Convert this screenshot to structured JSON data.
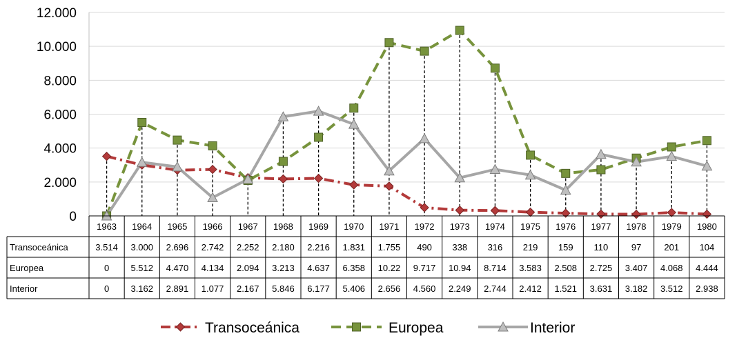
{
  "chart_data": {
    "type": "line",
    "title": "",
    "xlabel": "",
    "ylabel": "",
    "ylim": [
      0,
      12000
    ],
    "yticks": [
      "0",
      "2.000",
      "4.000",
      "6.000",
      "8.000",
      "10.000",
      "12.000"
    ],
    "grid": "horizontal",
    "legend_position": "bottom",
    "categories": [
      "1963",
      "1964",
      "1965",
      "1966",
      "1967",
      "1968",
      "1969",
      "1970",
      "1971",
      "1972",
      "1973",
      "1974",
      "1975",
      "1976",
      "1977",
      "1978",
      "1979",
      "1980"
    ],
    "series": [
      {
        "name": "Transoceánica",
        "color": "#b33a3a",
        "marker": "diamond",
        "line_style": "dash-dot",
        "values": [
          3514,
          3000,
          2696,
          2742,
          2252,
          2180,
          2216,
          1831,
          1755,
          490,
          338,
          316,
          219,
          159,
          110,
          97,
          201,
          104
        ],
        "labels": [
          "3.514",
          "3.000",
          "2.696",
          "2.742",
          "2.252",
          "2.180",
          "2.216",
          "1.831",
          "1.755",
          "490",
          "338",
          "316",
          "219",
          "159",
          "110",
          "97",
          "201",
          "104"
        ]
      },
      {
        "name": "Europea",
        "color": "#77933c",
        "marker": "square",
        "line_style": "dashed",
        "values": [
          0,
          5512,
          4470,
          4134,
          2094,
          3213,
          4637,
          6358,
          10220,
          9717,
          10940,
          8714,
          3583,
          2508,
          2725,
          3407,
          4068,
          4444
        ],
        "labels": [
          "0",
          "5.512",
          "4.470",
          "4.134",
          "2.094",
          "3.213",
          "4.637",
          "6.358",
          "10.22",
          "9.717",
          "10.94",
          "8.714",
          "3.583",
          "2.508",
          "2.725",
          "3.407",
          "4.068",
          "4.444"
        ]
      },
      {
        "name": "Interior",
        "color": "#a6a6a6",
        "marker": "triangle",
        "line_style": "solid",
        "values": [
          0,
          3162,
          2891,
          1077,
          2167,
          5846,
          6177,
          5406,
          2656,
          4560,
          2249,
          2744,
          2412,
          1521,
          3631,
          3182,
          3512,
          2938
        ],
        "labels": [
          "0",
          "3.162",
          "2.891",
          "1.077",
          "2.167",
          "5.846",
          "6.177",
          "5.406",
          "2.656",
          "4.560",
          "2.249",
          "2.744",
          "2.412",
          "1.521",
          "3.631",
          "3.182",
          "3.512",
          "2.938"
        ]
      }
    ],
    "drop_lines": true,
    "data_table": true
  }
}
